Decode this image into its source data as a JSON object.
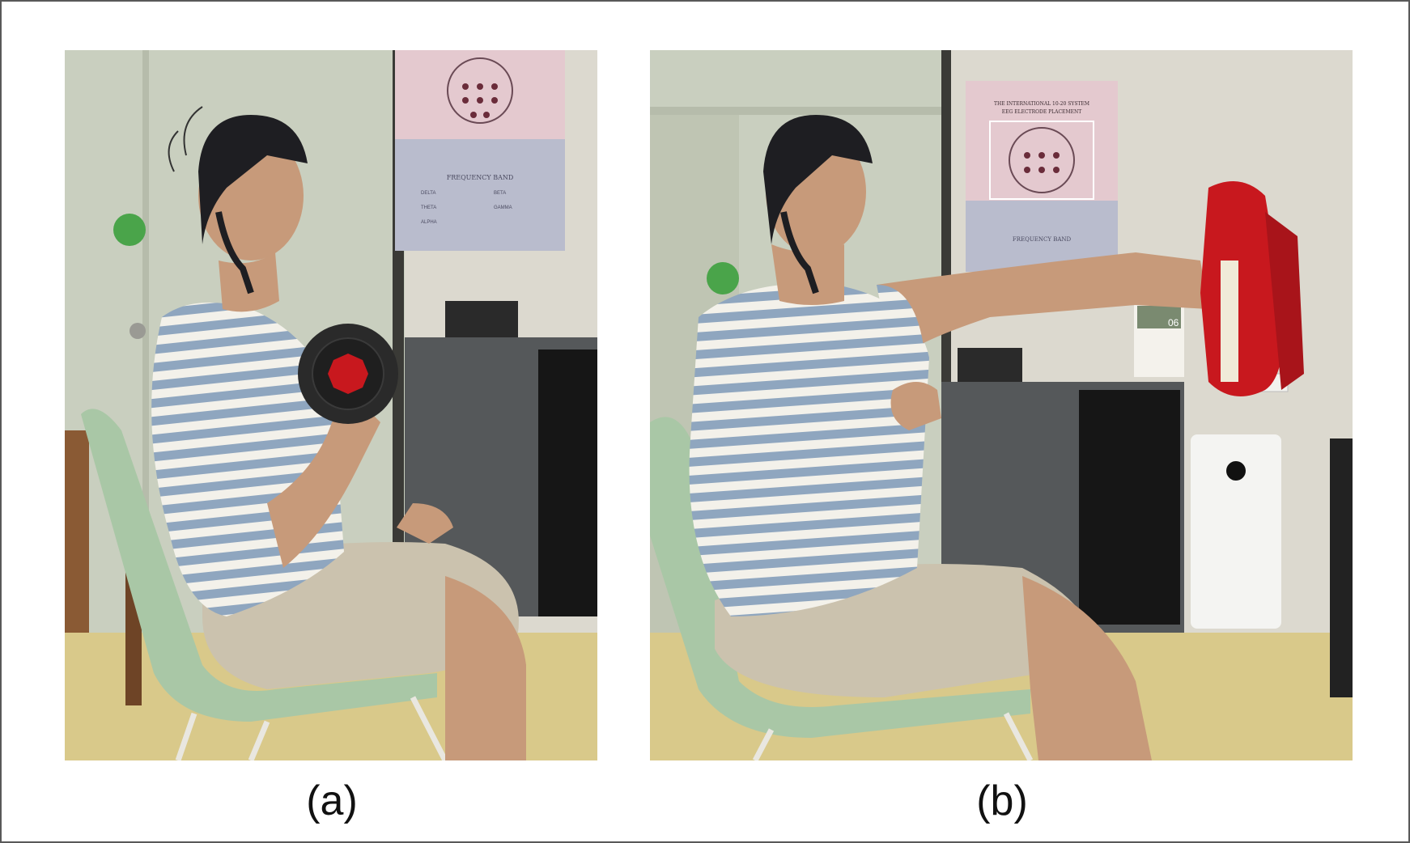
{
  "figure": {
    "panels": [
      {
        "id": "a",
        "caption": "(a)",
        "poster": {
          "heading": "FREQUENCY BAND",
          "bands": [
            "DELTA",
            "THETA",
            "ALPHA",
            "BETA",
            "GAMMA"
          ]
        }
      },
      {
        "id": "b",
        "caption": "(b)",
        "poster": {
          "title_line1": "THE INTERNATIONAL 10-20 SYSTEM",
          "title_line2": "EEG ELECTRODE PLACEMENT",
          "heading": "FREQUENCY BAND"
        },
        "calendar_number": "06"
      }
    ],
    "colors": {
      "wall": "#dcd9cf",
      "door": "#c9cfbf",
      "floor": "#d9c98a",
      "shirt_stripe_blue": "#8fa6bf",
      "shirt_stripe_white": "#f3f1ea",
      "shorts": "#cbc2ae",
      "chair": "#a9c7a6",
      "cabinet": "#55585a",
      "pad_red": "#c8181e",
      "dumbbell": "#2a2a2a",
      "dumbbell_nut": "#c8181e",
      "eeg_cap": "#1e1e22"
    }
  }
}
